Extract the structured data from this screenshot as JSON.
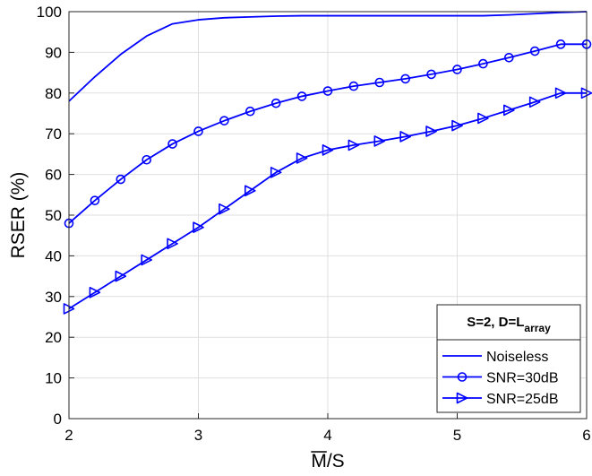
{
  "chart_data": {
    "type": "line",
    "xlabel_main": "M",
    "xlabel_suffix": "/S",
    "ylabel": "RSER (%)",
    "xlim": [
      2,
      6
    ],
    "ylim": [
      0,
      100
    ],
    "x_ticks": [
      "2",
      "3",
      "4",
      "5",
      "6"
    ],
    "y_ticks": [
      "0",
      "10",
      "20",
      "30",
      "40",
      "50",
      "60",
      "70",
      "80",
      "90",
      "100"
    ],
    "grid": true,
    "legend_placement": "bottom-right",
    "legend_title_main": "S=2, D=L",
    "legend_title_sub": "array",
    "line_color": "#0000ff",
    "series": [
      {
        "name": "Noiseless",
        "marker": "none",
        "x": [
          2.0,
          2.2,
          2.4,
          2.6,
          2.8,
          3.0,
          3.2,
          3.4,
          3.6,
          3.8,
          4.0,
          4.2,
          4.4,
          4.6,
          4.8,
          5.0,
          5.2,
          5.4,
          5.6,
          5.8,
          6.0
        ],
        "y": [
          78,
          84,
          89.5,
          94,
          97,
          98,
          98.5,
          98.7,
          98.9,
          99,
          99,
          99,
          99,
          99,
          99,
          99,
          99,
          99.2,
          99.5,
          99.8,
          100
        ]
      },
      {
        "name": "SNR=30dB",
        "marker": "circle",
        "x": [
          2.0,
          2.2,
          2.4,
          2.6,
          2.8,
          3.0,
          3.2,
          3.4,
          3.6,
          3.8,
          4.0,
          4.2,
          4.4,
          4.6,
          4.8,
          5.0,
          5.2,
          5.4,
          5.6,
          5.8,
          6.0
        ],
        "y": [
          48,
          53.6,
          58.8,
          63.6,
          67.5,
          70.6,
          73.2,
          75.5,
          77.5,
          79.2,
          80.5,
          81.7,
          82.6,
          83.5,
          84.6,
          85.8,
          87.2,
          88.7,
          90.3,
          92,
          92
        ]
      },
      {
        "name": "SNR=25dB",
        "marker": "triangle-right",
        "x": [
          2.0,
          2.2,
          2.4,
          2.6,
          2.8,
          3.0,
          3.2,
          3.4,
          3.6,
          3.8,
          4.0,
          4.2,
          4.4,
          4.6,
          4.8,
          5.0,
          5.2,
          5.4,
          5.6,
          5.8,
          6.0
        ],
        "y": [
          27,
          31,
          35,
          39,
          43,
          47,
          51.5,
          56,
          60.5,
          64,
          66,
          67.2,
          68.2,
          69.3,
          70.6,
          72,
          73.8,
          75.8,
          77.8,
          80,
          80
        ]
      }
    ]
  }
}
